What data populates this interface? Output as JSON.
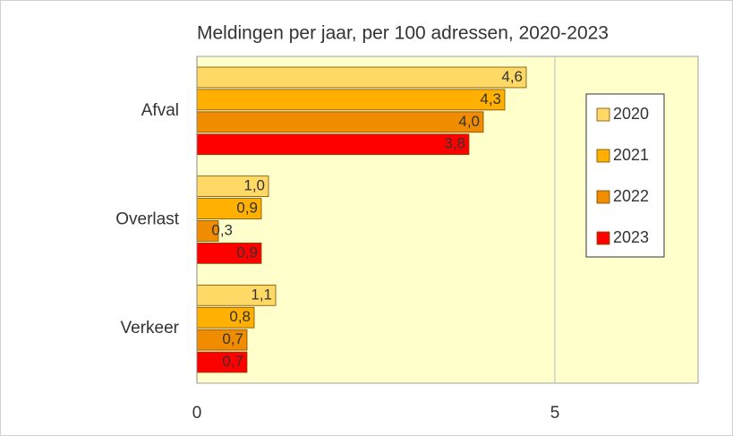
{
  "chart_data": {
    "type": "barh",
    "title": "Meldingen per jaar, per 100 adressen, 2020-2023",
    "categories": [
      "Afval",
      "Overlast",
      "Verkeer"
    ],
    "series": [
      {
        "name": "2020",
        "color": "#ffd966",
        "values": [
          4.6,
          1.0,
          1.1
        ],
        "value_labels": [
          "4,6",
          "1,0",
          "1,1"
        ]
      },
      {
        "name": "2021",
        "color": "#ffb000",
        "values": [
          4.3,
          0.9,
          0.8
        ],
        "value_labels": [
          "4,3",
          "0,9",
          "0,8"
        ]
      },
      {
        "name": "2022",
        "color": "#f08c00",
        "values": [
          4.0,
          0.3,
          0.7
        ],
        "value_labels": [
          "4,0",
          "0,3",
          "0,7"
        ]
      },
      {
        "name": "2023",
        "color": "#ff0000",
        "values": [
          3.8,
          0.9,
          0.7
        ],
        "value_labels": [
          "3,8",
          "0,9",
          "0,7"
        ]
      }
    ],
    "xlim": [
      0,
      7
    ],
    "xticks": [
      0,
      5
    ],
    "grid": true,
    "legend": "right"
  }
}
